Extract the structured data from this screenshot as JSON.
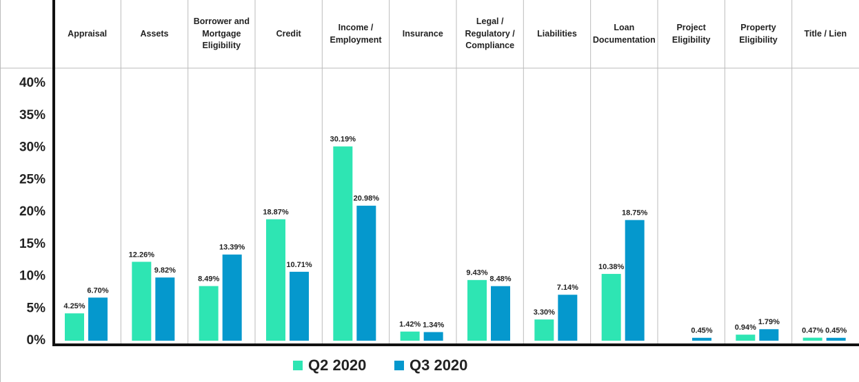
{
  "chart_data": {
    "type": "bar",
    "categories": [
      "Appraisal",
      "Assets",
      "Borrower and Mortgage Eligibility",
      "Credit",
      "Income / Employment",
      "Insurance",
      "Legal / Regulatory / Compliance",
      "Liabilities",
      "Loan Documentation",
      "Project Eligibility",
      "Property Eligibility",
      "Title / Lien"
    ],
    "series": [
      {
        "name": "Q2 2020",
        "color": "#2ee5b3",
        "values": [
          4.25,
          12.26,
          8.49,
          18.87,
          30.19,
          1.42,
          9.43,
          3.3,
          10.38,
          null,
          0.94,
          0.47
        ],
        "value_labels": [
          "4.25%",
          "12.26%",
          "8.49%",
          "18.87%",
          "30.19%",
          "1.42%",
          "9.43%",
          "3.30%",
          "10.38%",
          null,
          "0.94%",
          "0.47%"
        ]
      },
      {
        "name": "Q3 2020",
        "color": "#0598cd",
        "values": [
          6.7,
          9.82,
          13.39,
          10.71,
          20.98,
          1.34,
          8.48,
          7.14,
          18.75,
          0.45,
          1.79,
          0.45
        ],
        "value_labels": [
          "6.70%",
          "9.82%",
          "13.39%",
          "10.71%",
          "20.98%",
          "1.34%",
          "8.48%",
          "7.14%",
          "18.75%",
          "0.45%",
          "1.79%",
          "0.45%"
        ]
      }
    ],
    "ylim": [
      0,
      40
    ],
    "yticks": [
      {
        "value": 0,
        "label": "0%"
      },
      {
        "value": 5,
        "label": "5%"
      },
      {
        "value": 10,
        "label": "10%"
      },
      {
        "value": 15,
        "label": "15%"
      },
      {
        "value": 20,
        "label": "20%"
      },
      {
        "value": 25,
        "label": "25%"
      },
      {
        "value": 30,
        "label": "30%"
      },
      {
        "value": 35,
        "label": "35%"
      },
      {
        "value": 40,
        "label": "40%"
      }
    ],
    "legend": "bottom"
  }
}
